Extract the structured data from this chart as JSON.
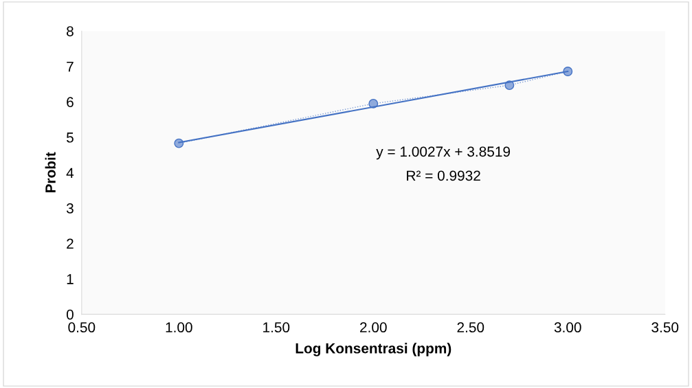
{
  "chart_data": {
    "type": "line",
    "xlabel": "Log Konsentrasi (ppm)",
    "ylabel": "Probit",
    "series": [
      {
        "color": "#4472c4",
        "x": [
          1.0,
          2.0,
          2.7,
          3.0
        ],
        "values": [
          4.83,
          5.95,
          6.47,
          6.86
        ],
        "marker": "circle",
        "line_style": "dotted"
      },
      {
        "color": "#4472c4",
        "x": [
          1.0,
          3.0
        ],
        "values": [
          4.85,
          6.86
        ],
        "marker": "none",
        "line_style": "solid"
      }
    ],
    "annotations": [
      "y = 1.0027x + 3.8519",
      "R² = 0.9932"
    ],
    "xlim": [
      0.5,
      3.5
    ],
    "xticks": [
      {
        "value": 0.5,
        "label": "0.50"
      },
      {
        "value": 1.0,
        "label": "1.00"
      },
      {
        "value": 1.5,
        "label": "1.50"
      },
      {
        "value": 2.0,
        "label": "2.00"
      },
      {
        "value": 2.5,
        "label": "2.50"
      },
      {
        "value": 3.0,
        "label": "3.00"
      },
      {
        "value": 3.5,
        "label": "3.50"
      }
    ],
    "ylim": [
      0,
      8
    ],
    "yticks": [
      0,
      1,
      2,
      3,
      4,
      5,
      6,
      7,
      8
    ],
    "grid": false,
    "legend": false
  }
}
